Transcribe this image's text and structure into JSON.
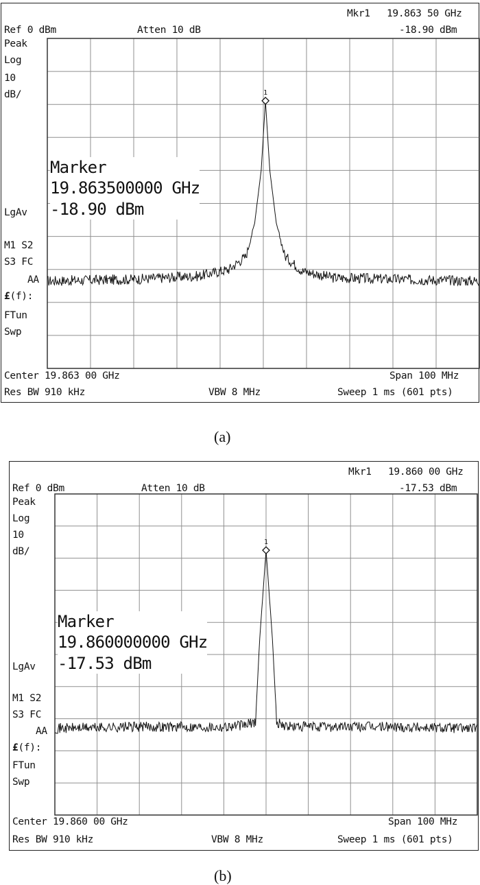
{
  "figures": [
    {
      "caption": "(a)",
      "mkr_label": "Mkr1",
      "mkr_freq": "19.863 50 GHz",
      "mkr_amp": "-18.90 dBm",
      "ref": "Ref 0 dBm",
      "atten": "Atten 10 dB",
      "side_labels": {
        "peak": "Peak",
        "log": "Log",
        "scale_num": "10",
        "scale_unit": "dB/",
        "lgav": "LgAv",
        "m1s2": "M1  S2",
        "s3fc": "S3  FC",
        "aa": "AA",
        "ef_bold": "£",
        "ef_rest": "(f):",
        "ftun": "FTun",
        "swp": "Swp"
      },
      "marker_box": {
        "title": "Marker",
        "freq": "19.863500000 GHz",
        "amp": "-18.90 dBm"
      },
      "center": "Center 19.863 00 GHz",
      "span": "Span 100 MHz",
      "res_bw": "Res BW 910 kHz",
      "vbw": "VBW 8 MHz",
      "sweep": "Sweep 1 ms (601 pts)",
      "marker_number": "1"
    },
    {
      "caption": "(b)",
      "mkr_label": "Mkr1",
      "mkr_freq": "19.860 00 GHz",
      "mkr_amp": "-17.53 dBm",
      "ref": "Ref 0 dBm",
      "atten": "Atten 10 dB",
      "side_labels": {
        "peak": "Peak",
        "log": "Log",
        "scale_num": "10",
        "scale_unit": "dB/",
        "lgav": "LgAv",
        "m1s2": "M1  S2",
        "s3fc": "S3  FC",
        "aa": "AA",
        "ef_bold": "£",
        "ef_rest": "(f):",
        "ftun": "FTun",
        "swp": "Swp"
      },
      "marker_box": {
        "title": "Marker",
        "freq": "19.860000000 GHz",
        "amp": "-17.53 dBm"
      },
      "center": "Center 19.860 00 GHz",
      "span": "Span 100 MHz",
      "res_bw": "Res BW 910 kHz",
      "vbw": "VBW 8 MHz",
      "sweep": "Sweep 1 ms (601 pts)",
      "marker_number": "1"
    }
  ],
  "chart_data": [
    {
      "type": "line",
      "title": "",
      "xlabel": "",
      "ylabel": "",
      "x_unit": "GHz",
      "y_unit": "dBm",
      "xlim": [
        19.813,
        19.913
      ],
      "ylim": [
        -100,
        0
      ],
      "grid": true,
      "points": 601,
      "noise_floor_dbm": -73,
      "series": [
        {
          "x": [
            19.813,
            19.833,
            19.848,
            19.855,
            19.859,
            19.861,
            19.8625,
            19.8635,
            19.8645,
            19.866,
            19.868,
            19.872,
            19.879,
            19.894,
            19.913
          ],
          "y": [
            -73.5,
            -73.0,
            -72.0,
            -70.0,
            -66.0,
            -56.0,
            -40.0,
            -18.9,
            -40.0,
            -56.0,
            -66.0,
            -70.5,
            -72.5,
            -73.0,
            -73.5
          ]
        }
      ],
      "marker": {
        "x": 19.8635,
        "y": -18.9
      }
    },
    {
      "type": "line",
      "title": "",
      "xlabel": "",
      "ylabel": "",
      "x_unit": "GHz",
      "y_unit": "dBm",
      "xlim": [
        19.81,
        19.91
      ],
      "ylim": [
        -100,
        0
      ],
      "grid": true,
      "points": 601,
      "noise_floor_dbm": -72.5,
      "series": [
        {
          "x": [
            19.81,
            19.83,
            19.85,
            19.855,
            19.8575,
            19.8585,
            19.86,
            19.8615,
            19.8625,
            19.865,
            19.87,
            19.89,
            19.91
          ],
          "y": [
            -73.0,
            -72.5,
            -72.5,
            -72.0,
            -71.0,
            -45.0,
            -17.53,
            -45.0,
            -71.0,
            -72.5,
            -72.5,
            -72.5,
            -73.0
          ]
        }
      ],
      "marker": {
        "x": 19.86,
        "y": -17.53
      }
    }
  ]
}
